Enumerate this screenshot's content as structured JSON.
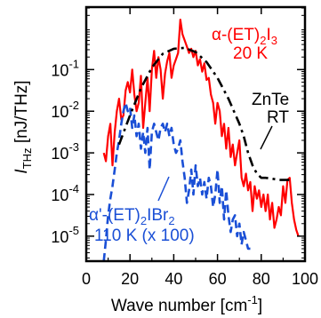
{
  "chart_data": {
    "type": "line",
    "xlabel_main": "Wave number [cm",
    "xlabel_sup": "-1",
    "xlabel_close": "]",
    "ylabel_italic": "I",
    "ylabel_sub": "THz",
    "ylabel_rest": " [nJ/THz]",
    "xlim": [
      0,
      100
    ],
    "ylim_log10": [
      -5.6,
      0.5
    ],
    "yscale": "log",
    "x_ticks": [
      {
        "value": 0,
        "label": "0"
      },
      {
        "value": 20,
        "label": "20"
      },
      {
        "value": 40,
        "label": "40"
      },
      {
        "value": 60,
        "label": "60"
      },
      {
        "value": 80,
        "label": "80"
      },
      {
        "value": 100,
        "label": "100"
      }
    ],
    "y_ticks": [
      {
        "exp": -1,
        "base": "10",
        "sup": "-1"
      },
      {
        "exp": -2,
        "base": "10",
        "sup": "-2"
      },
      {
        "exp": -3,
        "base": "10",
        "sup": "-3"
      },
      {
        "exp": -4,
        "base": "10",
        "sup": "-4"
      },
      {
        "exp": -5,
        "base": "10",
        "sup": "-5"
      }
    ],
    "series": [
      {
        "name": "α-(ET)2I3 20 K",
        "color": "#ff0000",
        "style": "solid",
        "x": [
          8,
          9,
          10,
          11,
          12,
          13,
          14,
          15,
          16,
          17,
          18,
          19,
          20,
          21,
          22,
          23,
          24,
          25,
          26,
          27,
          28,
          29,
          30,
          31,
          32,
          33,
          34,
          35,
          36,
          37,
          38,
          39,
          40,
          41,
          42,
          43,
          44,
          45,
          46,
          47,
          48,
          49,
          50,
          51,
          52,
          53,
          54,
          55,
          56,
          57,
          58,
          59,
          60,
          61,
          62,
          63,
          64,
          65,
          66,
          67,
          68,
          69,
          70,
          71,
          72,
          73,
          74,
          75,
          76,
          77,
          78,
          79,
          80,
          81,
          82,
          83,
          84,
          85,
          86,
          87,
          88,
          89,
          90,
          91,
          92,
          93,
          94,
          95,
          96,
          97
        ],
        "y_log10": [
          -3.0,
          -3.2,
          -2.6,
          -2.3,
          -3.3,
          -2.5,
          -2.0,
          -1.7,
          -2.2,
          -2.1,
          -1.5,
          -1.3,
          -1.55,
          -1.0,
          -1.6,
          -2.0,
          -1.8,
          -1.15,
          -2.4,
          -1.8,
          -1.2,
          -2.0,
          -1.0,
          -0.55,
          -1.2,
          -0.7,
          -1.0,
          -1.7,
          -1.1,
          -0.8,
          -0.6,
          -1.2,
          -0.9,
          -0.75,
          -0.6,
          0.2,
          -0.15,
          -0.3,
          -0.45,
          -0.6,
          -0.5,
          -0.7,
          -0.55,
          -0.9,
          -0.75,
          -1.05,
          -0.85,
          -1.25,
          -1.2,
          -1.6,
          -1.8,
          -2.3,
          -1.8,
          -2.0,
          -2.6,
          -2.3,
          -2.9,
          -2.4,
          -3.1,
          -2.8,
          -3.3,
          -3.0,
          -2.7,
          -3.6,
          -3.8,
          -3.5,
          -3.9,
          -3.7,
          -4.4,
          -3.8,
          -4.1,
          -3.9,
          -4.3,
          -4.0,
          -4.4,
          -4.0,
          -4.6,
          -4.2,
          -4.8,
          -4.6,
          -4.3,
          -4.5,
          -3.8,
          -4.2,
          -3.65,
          -3.6,
          -4.2,
          -4.6,
          -4.85,
          -5.0
        ]
      },
      {
        "name": "α'-(ET)2IBr2 110 K (x 100)",
        "color": "#1a4fd6",
        "style": "dashed",
        "x": [
          8,
          9,
          10,
          11,
          12,
          13,
          14,
          15,
          16,
          17,
          18,
          19,
          20,
          21,
          22,
          23,
          24,
          25,
          26,
          27,
          28,
          29,
          30,
          31,
          32,
          33,
          34,
          35,
          36,
          37,
          38,
          39,
          40,
          41,
          42,
          43,
          44,
          45,
          46,
          47,
          48,
          49,
          50,
          51,
          52,
          53,
          54,
          55,
          56,
          57,
          58,
          59,
          60,
          61,
          62,
          63,
          64,
          65,
          66,
          67,
          68,
          69,
          70,
          71,
          72,
          73,
          74,
          75
        ],
        "y_log10": [
          -5.6,
          -5.1,
          -4.5,
          -4.1,
          -3.8,
          -3.4,
          -3.0,
          -2.7,
          -2.3,
          -2.0,
          -1.8,
          -2.0,
          -1.9,
          -2.4,
          -2.1,
          -2.6,
          -2.3,
          -2.9,
          -2.5,
          -3.0,
          -2.4,
          -3.4,
          -2.5,
          -2.3,
          -2.5,
          -2.7,
          -2.4,
          -2.3,
          -2.5,
          -2.3,
          -2.6,
          -2.4,
          -2.8,
          -3.0,
          -2.9,
          -2.7,
          -3.2,
          -3.6,
          -4.2,
          -3.9,
          -3.4,
          -4.0,
          -3.3,
          -3.8,
          -3.6,
          -4.0,
          -3.7,
          -4.1,
          -3.6,
          -3.8,
          -4.3,
          -4.0,
          -3.4,
          -4.2,
          -3.8,
          -4.6,
          -3.9,
          -4.5,
          -4.9,
          -4.6,
          -4.5,
          -5.0,
          -4.7,
          -5.2,
          -4.9,
          -5.1,
          -5.3,
          -5.3
        ]
      },
      {
        "name": "ZnTe RT",
        "color": "#000000",
        "style": "dashdot",
        "x": [
          15,
          20,
          25,
          30,
          35,
          40,
          45,
          50,
          55,
          60,
          65,
          70,
          72,
          74,
          76,
          78,
          80,
          82,
          85,
          88,
          91,
          93
        ],
        "y_log10": [
          -2.8,
          -2.1,
          -1.45,
          -0.95,
          -0.62,
          -0.5,
          -0.48,
          -0.58,
          -0.82,
          -1.2,
          -1.7,
          -2.3,
          -2.6,
          -3.0,
          -3.3,
          -3.5,
          -3.6,
          -3.6,
          -3.62,
          -3.65,
          -3.65,
          -3.65
        ]
      }
    ],
    "annotations": {
      "red_prefix": "α-(ET)",
      "red_sub1": "2",
      "red_mid": "I",
      "red_sub2": "3",
      "red_temp": "20 K",
      "black_line1": "ZnTe",
      "black_line2": "RT",
      "blue_prefix": "α'-(ET)",
      "blue_sub1": "2",
      "blue_mid": "IBr",
      "blue_sub2": "2",
      "blue_temp": "110 K (x 100)"
    }
  }
}
